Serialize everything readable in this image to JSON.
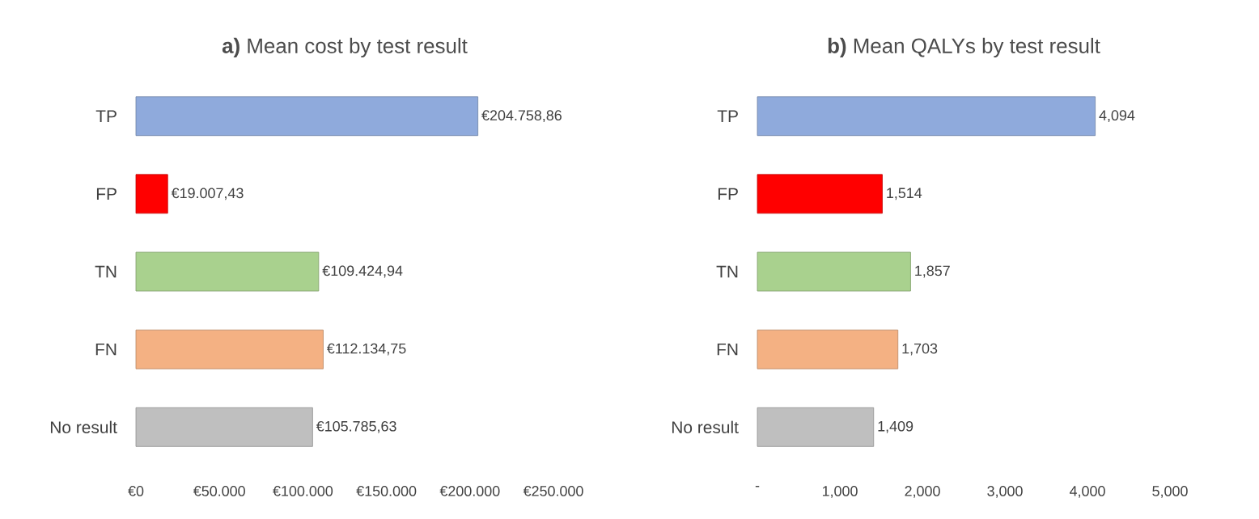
{
  "chart_data": [
    {
      "type": "bar",
      "orientation": "horizontal",
      "title": "**a)** Mean cost by test result",
      "categories": [
        "TP",
        "FP",
        "TN",
        "FN",
        "No result"
      ],
      "values": [
        204758.86,
        19007.43,
        109424.94,
        112134.75,
        105785.63
      ],
      "value_labels": [
        "€204.758,86",
        "€19.007,43",
        "€109.424,94",
        "€112.134,75",
        "€105.785,63"
      ],
      "colors": [
        "#8faadc",
        "#ff0000",
        "#a9d18e",
        "#f4b183",
        "#bfbfbf"
      ],
      "xlim": [
        0,
        250000
      ],
      "xticks": [
        {
          "value": 0,
          "label": "€0"
        },
        {
          "value": 50000,
          "label": "€50.000"
        },
        {
          "value": 100000,
          "label": "€100.000"
        },
        {
          "value": 150000,
          "label": "€150.000"
        },
        {
          "value": 200000,
          "label": "€200.000"
        },
        {
          "value": 250000,
          "label": "€250.000"
        }
      ],
      "grid": false
    },
    {
      "type": "bar",
      "orientation": "horizontal",
      "title": "**b)** Mean QALYs by test result",
      "categories": [
        "TP",
        "FP",
        "TN",
        "FN",
        "No result"
      ],
      "values": [
        4.094,
        1.514,
        1.857,
        1.703,
        1.409
      ],
      "value_labels": [
        "4,094",
        "1,514",
        "1,857",
        "1,703",
        "1,409"
      ],
      "colors": [
        "#8faadc",
        "#ff0000",
        "#a9d18e",
        "#f4b183",
        "#bfbfbf"
      ],
      "xlim": [
        0,
        5
      ],
      "xticks": [
        {
          "value": 0,
          "label": "-"
        },
        {
          "value": 1,
          "label": "1,000"
        },
        {
          "value": 2,
          "label": "2,000"
        },
        {
          "value": 3,
          "label": "3,000"
        },
        {
          "value": 4,
          "label": "4,000"
        },
        {
          "value": 5,
          "label": "5,000"
        }
      ],
      "grid": false
    }
  ]
}
